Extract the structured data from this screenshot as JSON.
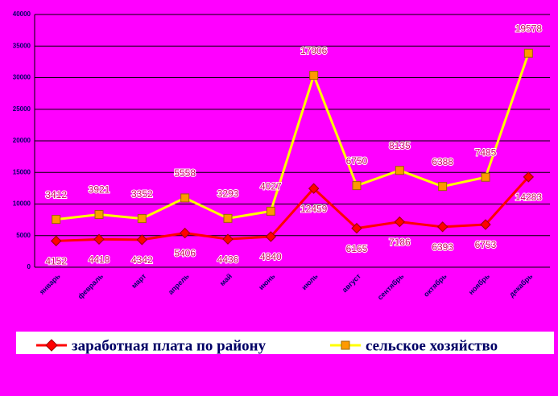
{
  "chart_data": {
    "type": "line",
    "stacked": true,
    "categories": [
      "январь",
      "февраль",
      "март",
      "апрель",
      "май",
      "июнь",
      "июль",
      "август",
      "сентябрь",
      "октябрь",
      "ноябрь",
      "декабрь"
    ],
    "series": [
      {
        "name": "заработная плата по району",
        "color": "#ff0000",
        "marker": "diamond",
        "marker_color": "#ff0000",
        "values": [
          4152,
          4418,
          4342,
          5406,
          4436,
          4840,
          12459,
          6165,
          7186,
          6393,
          6753,
          14283
        ]
      },
      {
        "name": "сельское хозяйство",
        "color": "#ffff00",
        "marker": "square",
        "marker_color": "#ff9900",
        "values": [
          3412,
          3921,
          3352,
          5558,
          3293,
          4027,
          17906,
          6750,
          8135,
          6388,
          7485,
          19578
        ]
      }
    ],
    "ylim": [
      0,
      40000
    ],
    "yticks": [
      0,
      5000,
      10000,
      15000,
      20000,
      25000,
      30000,
      35000,
      40000
    ],
    "grid": true,
    "legend": "bottom",
    "background": "#ff00ff"
  }
}
